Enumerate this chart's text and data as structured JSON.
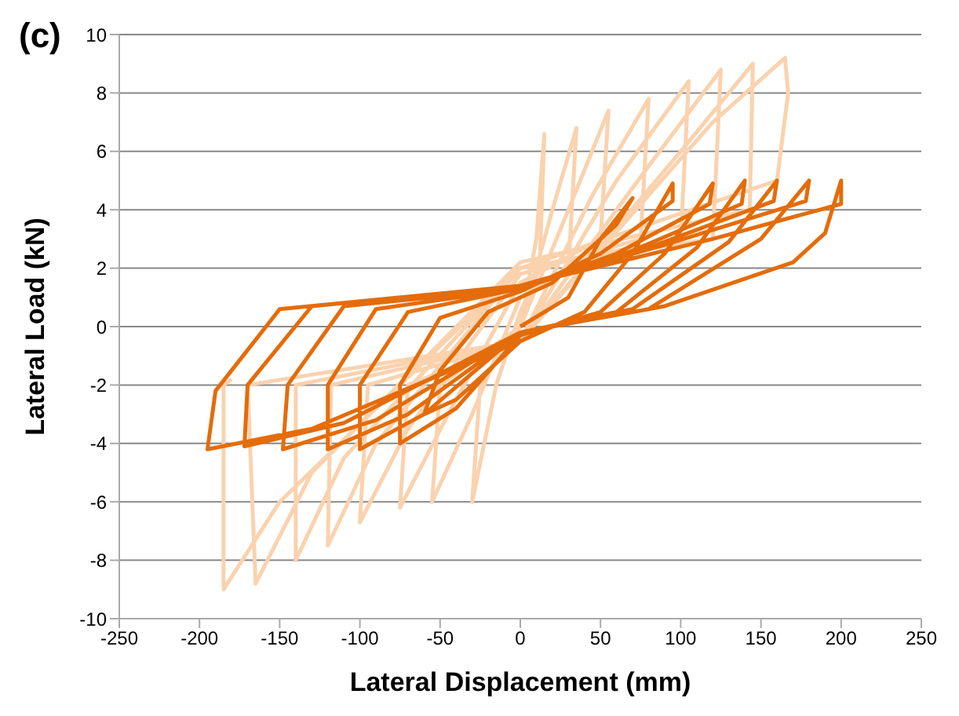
{
  "chart_data": {
    "type": "line",
    "title": "(c)",
    "xlabel": "Lateral Displacement (mm)",
    "ylabel": "Lateral Load (kN)",
    "xlim": [
      -250,
      250
    ],
    "xticks": [
      -250,
      -200,
      -150,
      -100,
      -50,
      0,
      50,
      100,
      150,
      200,
      250
    ],
    "ylim": [
      -10,
      10
    ],
    "yticks": [
      -10,
      -8,
      -6,
      -4,
      -2,
      0,
      2,
      4,
      6,
      8,
      10
    ],
    "grid": "y",
    "marker": "none",
    "line_style": "solid",
    "series": [
      {
        "color": "#fad2ae",
        "x": [
          0,
          10,
          15,
          12,
          0,
          -15,
          -30,
          -25,
          0,
          20,
          35,
          30,
          0,
          -30,
          -55,
          -50,
          0,
          30,
          55,
          50,
          0,
          -45,
          -75,
          -70,
          0,
          45,
          80,
          75,
          0,
          -70,
          -100,
          -95,
          0,
          60,
          105,
          100,
          0,
          -90,
          -120,
          -118,
          0,
          80,
          125,
          120,
          0,
          -110,
          -140,
          -140,
          0,
          100,
          145,
          143,
          0,
          -130,
          -165,
          -170,
          0,
          120,
          165,
          167,
          160,
          0,
          -150,
          -185,
          -185,
          -180
        ],
        "values": [
          0,
          3,
          6.6,
          2,
          0.5,
          -2,
          -6,
          -2,
          0,
          4,
          6.8,
          2,
          1,
          -3,
          -6,
          -2,
          0,
          4,
          7.4,
          3,
          1.5,
          -3,
          -6.2,
          -2,
          -0.5,
          4.5,
          7.8,
          3,
          1.8,
          -3.5,
          -6.7,
          -2,
          -0.5,
          5,
          8.4,
          3,
          2,
          -4,
          -7.5,
          -2,
          -0.5,
          5.5,
          8.8,
          3,
          2,
          -4.5,
          -8,
          -2,
          -0.5,
          6,
          9,
          4,
          2.2,
          -5,
          -8.8,
          -2,
          -0.5,
          7,
          9.2,
          8,
          5,
          2,
          -6,
          -9,
          -2,
          -1.8
        ]
      },
      {
        "color": "#e46c0a",
        "x": [
          0,
          30,
          50,
          70,
          60,
          20,
          -20,
          -50,
          -60,
          -40,
          0,
          40,
          70,
          95,
          95,
          50,
          0,
          -50,
          -75,
          -75,
          -40,
          0,
          50,
          90,
          120,
          118,
          60,
          0,
          -70,
          -100,
          -100,
          -60,
          0,
          60,
          110,
          140,
          138,
          70,
          0,
          -90,
          -120,
          -120,
          -70,
          0,
          70,
          130,
          160,
          158,
          80,
          0,
          -110,
          -145,
          -148,
          -90,
          0,
          80,
          150,
          180,
          178,
          90,
          0,
          -130,
          -170,
          -172,
          -110,
          0,
          90,
          170,
          190,
          200,
          200,
          120,
          0,
          -150,
          -190,
          -195,
          -130,
          0
        ],
        "values": [
          0,
          1,
          3,
          4.4,
          3.5,
          1.5,
          0.5,
          -1.5,
          -3,
          -2.5,
          -0.5,
          0.5,
          2.5,
          4.9,
          4.3,
          2.5,
          1.2,
          0.3,
          -2,
          -4,
          -2.8,
          -0.3,
          0.5,
          2.5,
          4.9,
          4.2,
          2.5,
          1.3,
          0.5,
          -2,
          -4.2,
          -3,
          -0.2,
          0.5,
          2.7,
          5,
          4.2,
          2.6,
          1.3,
          0.6,
          -2,
          -4.2,
          -3,
          -0.2,
          0.6,
          2.9,
          5,
          4.3,
          2.7,
          1.3,
          0.7,
          -2,
          -4.2,
          -3.2,
          -0.2,
          0.6,
          3,
          5,
          4.3,
          2.8,
          1.4,
          0.7,
          -2,
          -4.1,
          -3.3,
          -0.2,
          0.7,
          2.2,
          3.2,
          5,
          4.2,
          3,
          1.4,
          0.6,
          -2.2,
          -4.2,
          -3.5,
          -0.5
        ]
      }
    ]
  }
}
